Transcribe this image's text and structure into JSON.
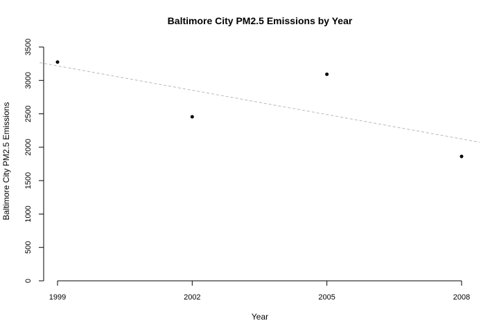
{
  "chart_data": {
    "type": "scatter",
    "title": "Baltimore City PM2.5 Emissions by Year",
    "xlabel": "Year",
    "ylabel": "Baltimore City PM2.5 Emissions",
    "x": [
      1999,
      2002,
      2005,
      2008
    ],
    "y": [
      3275,
      2455,
      3092,
      1862
    ],
    "xlim": [
      1999,
      2008
    ],
    "ylim": [
      0,
      3500
    ],
    "x_ticks": [
      "1999",
      "2002",
      "2005",
      "2008"
    ],
    "y_ticks": [
      "0",
      "500",
      "1000",
      "1500",
      "2000",
      "2500",
      "3000",
      "3500"
    ],
    "trend_line": {
      "style": "dashed",
      "color": "#b8b8b8",
      "y_at_1999": 3218,
      "y_at_2008": 2124
    },
    "grid": false,
    "legend": "none"
  }
}
